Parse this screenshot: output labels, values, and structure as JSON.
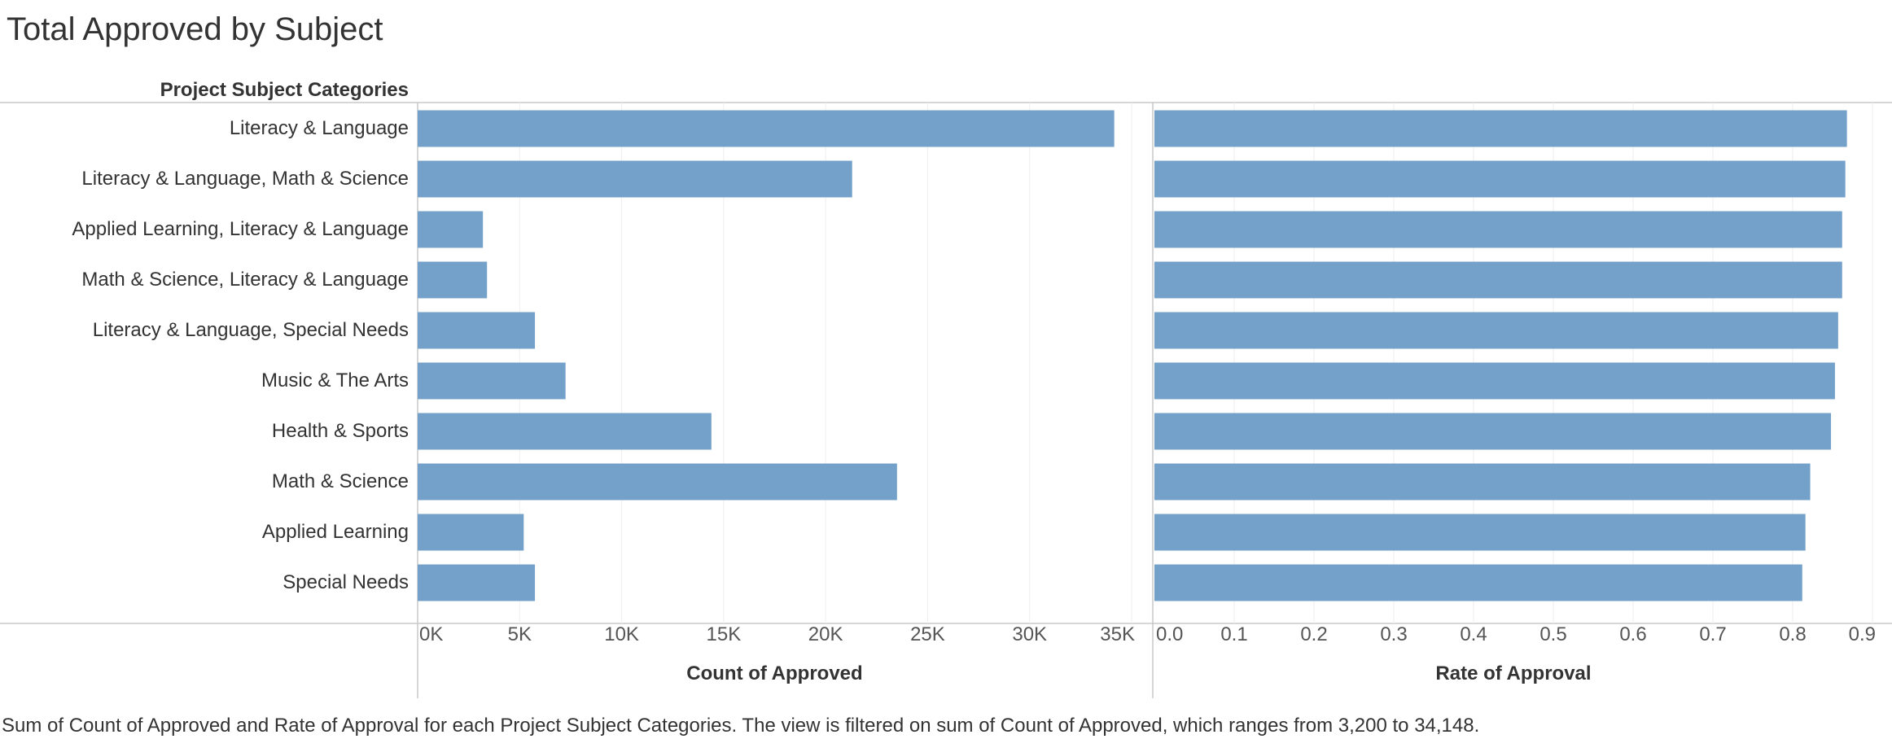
{
  "title": "Total Approved by Subject",
  "caption": "Sum of Count of Approved and Rate of Approval  for each Project Subject Categories. The view is filtered on sum of Count of Approved, which ranges from 3,200 to 34,148.",
  "colors": {
    "bar": "#74a1c9",
    "axis": "#c8c8c8",
    "grid": "#eeeeee",
    "text": "#333333"
  },
  "chart_data": {
    "type": "bar",
    "orientation": "horizontal",
    "row_header": "Project Subject Categories",
    "categories": [
      "Literacy & Language",
      "Literacy & Language, Math & Science",
      "Applied Learning, Literacy & Language",
      "Math & Science, Literacy & Language",
      "Literacy & Language, Special Needs",
      "Music & The Arts",
      "Health & Sports",
      "Math & Science",
      "Applied Learning",
      "Special Needs"
    ],
    "panels": [
      {
        "xlabel": "Count of Approved",
        "xlim": [
          0,
          35000
        ],
        "ticks": [
          0,
          5000,
          10000,
          15000,
          20000,
          25000,
          30000,
          35000
        ],
        "tick_labels": [
          "0K",
          "5K",
          "10K",
          "15K",
          "20K",
          "25K",
          "30K",
          "35K"
        ],
        "values": [
          34148,
          21300,
          3200,
          3400,
          5750,
          7250,
          14400,
          23500,
          5200,
          5750
        ]
      },
      {
        "xlabel": "Rate of Approval",
        "xlim": [
          0,
          0.9
        ],
        "ticks": [
          0,
          0.1,
          0.2,
          0.3,
          0.4,
          0.5,
          0.6,
          0.7,
          0.8,
          0.9
        ],
        "tick_labels": [
          "0.0",
          "0.1",
          "0.2",
          "0.3",
          "0.4",
          "0.5",
          "0.6",
          "0.7",
          "0.8",
          "0.9"
        ],
        "values": [
          0.868,
          0.866,
          0.862,
          0.862,
          0.857,
          0.853,
          0.848,
          0.822,
          0.816,
          0.812
        ]
      }
    ]
  }
}
